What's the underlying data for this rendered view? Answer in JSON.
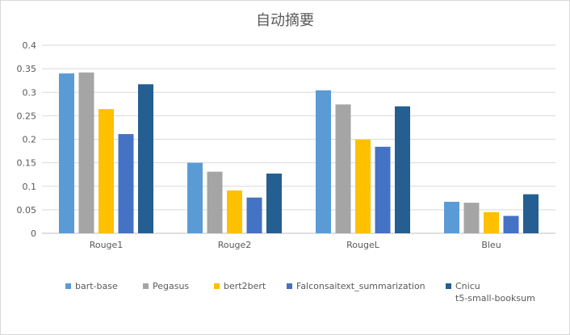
{
  "chart_data": {
    "type": "bar",
    "title": "自动摘要",
    "categories": [
      "Rouge1",
      "Rouge2",
      "RougeL",
      "Bleu"
    ],
    "ylim": [
      0,
      0.4
    ],
    "yticks": [
      "0",
      "0.05",
      "0.1",
      "0.15",
      "0.2",
      "0.25",
      "0.3",
      "0.35",
      "0.4"
    ],
    "grid": true,
    "legend_position": "bottom",
    "series": [
      {
        "name": "bart-base",
        "color": "#5b9bd5",
        "values": [
          0.34,
          0.15,
          0.304,
          0.067
        ]
      },
      {
        "name": "Pegasus",
        "color": "#a5a5a5",
        "values": [
          0.342,
          0.131,
          0.274,
          0.065
        ]
      },
      {
        "name": "bert2bert",
        "color": "#ffc000",
        "values": [
          0.264,
          0.091,
          0.199,
          0.045
        ]
      },
      {
        "name": "Falconsaitext_summarization",
        "color": "#4472c4",
        "values": [
          0.211,
          0.076,
          0.184,
          0.037
        ]
      },
      {
        "name": "Cnicu\nt5-small-booksum",
        "color": "#255e91",
        "values": [
          0.317,
          0.127,
          0.27,
          0.083
        ]
      }
    ]
  }
}
